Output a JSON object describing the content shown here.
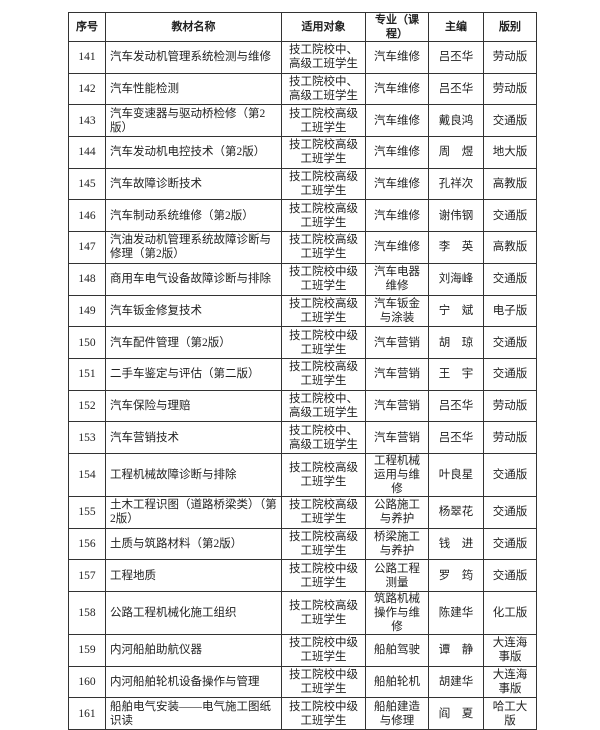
{
  "table": {
    "header": [
      "序号",
      "教材名称",
      "适用对象",
      "专业（课程）",
      "主编",
      "版别"
    ],
    "rows": [
      [
        "141",
        "汽车发动机管理系统检测与维修",
        "技工院校中、高级工班学生",
        "汽车维修",
        "吕丕华",
        "劳动版"
      ],
      [
        "142",
        "汽车性能检测",
        "技工院校中、高级工班学生",
        "汽车维修",
        "吕丕华",
        "劳动版"
      ],
      [
        "143",
        "汽车变速器与驱动桥检修（第2版）",
        "技工院校高级工班学生",
        "汽车维修",
        "戴良鸿",
        "交通版"
      ],
      [
        "144",
        "汽车发动机电控技术（第2版）",
        "技工院校高级工班学生",
        "汽车维修",
        "周　煜",
        "地大版"
      ],
      [
        "145",
        "汽车故障诊断技术",
        "技工院校高级工班学生",
        "汽车维修",
        "孔祥次",
        "高教版"
      ],
      [
        "146",
        "汽车制动系统维修（第2版）",
        "技工院校高级工班学生",
        "汽车维修",
        "谢伟钢",
        "交通版"
      ],
      [
        "147",
        "汽油发动机管理系统故障诊断与修理（第2版）",
        "技工院校高级工班学生",
        "汽车维修",
        "李　英",
        "高教版"
      ],
      [
        "148",
        "商用车电气设备故障诊断与排除",
        "技工院校中级工班学生",
        "汽车电器维修",
        "刘海峰",
        "交通版"
      ],
      [
        "149",
        "汽车钣金修复技术",
        "技工院校高级工班学生",
        "汽车钣金与涂装",
        "宁　斌",
        "电子版"
      ],
      [
        "150",
        "汽车配件管理（第2版）",
        "技工院校中级工班学生",
        "汽车营销",
        "胡　琼",
        "交通版"
      ],
      [
        "151",
        "二手车鉴定与评估（第二版）",
        "技工院校高级工班学生",
        "汽车营销",
        "王　宇",
        "交通版"
      ],
      [
        "152",
        "汽车保险与理赔",
        "技工院校中、高级工班学生",
        "汽车营销",
        "吕丕华",
        "劳动版"
      ],
      [
        "153",
        "汽车营销技术",
        "技工院校中、高级工班学生",
        "汽车营销",
        "吕丕华",
        "劳动版"
      ],
      [
        "154",
        "工程机械故障诊断与排除",
        "技工院校高级工班学生",
        "工程机械运用与维修",
        "叶良星",
        "交通版"
      ],
      [
        "155",
        "土木工程识图（道路桥梁类）（第2版）",
        "技工院校高级工班学生",
        "公路施工与养护",
        "杨翠花",
        "交通版"
      ],
      [
        "156",
        "土质与筑路材料（第2版）",
        "技工院校高级工班学生",
        "桥梁施工与养护",
        "钱　进",
        "交通版"
      ],
      [
        "157",
        "工程地质",
        "技工院校中级工班学生",
        "公路工程测量",
        "罗　筠",
        "交通版"
      ],
      [
        "158",
        "公路工程机械化施工组织",
        "技工院校高级工班学生",
        "筑路机械操作与维修",
        "陈建华",
        "化工版"
      ],
      [
        "159",
        "内河船舶助航仪器",
        "技工院校中级工班学生",
        "船舶驾驶",
        "谭　静",
        "大连海事版"
      ],
      [
        "160",
        "内河船舶轮机设备操作与管理",
        "技工院校中级工班学生",
        "船舶轮机",
        "胡建华",
        "大连海事版"
      ],
      [
        "161",
        "船舶电气安装——电气施工图纸识读",
        "技工院校中级工班学生",
        "船舶建造与修理",
        "阎　夏",
        "哈工大版"
      ]
    ]
  }
}
